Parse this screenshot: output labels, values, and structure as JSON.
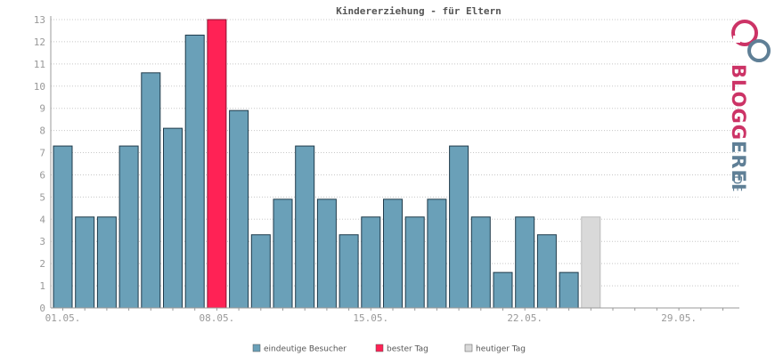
{
  "chart_data": {
    "type": "bar",
    "title": "Kindererziehung - für Eltern",
    "xlabel": "",
    "ylabel": "",
    "ylim": [
      0,
      13
    ],
    "yticks": [
      0,
      1,
      2,
      3,
      4,
      5,
      6,
      7,
      8,
      9,
      10,
      11,
      12,
      13
    ],
    "x_tick_labels": [
      "01.05.",
      "08.05.",
      "15.05.",
      "22.05.",
      "29.05."
    ],
    "days": 31,
    "values": [
      7.3,
      4.1,
      4.1,
      7.3,
      10.6,
      8.1,
      12.3,
      13,
      8.9,
      3.3,
      4.9,
      7.3,
      4.9,
      3.3,
      4.1,
      4.9,
      4.1,
      4.9,
      7.3,
      4.1,
      1.6,
      4.1,
      3.3,
      1.6,
      4.1
    ],
    "best_day_index": 7,
    "today_index": 24,
    "grid": true,
    "legend_position": "bottom",
    "legend": [
      {
        "label": "eindeutige Besucher",
        "color": "#6aa0b8"
      },
      {
        "label": "bester Tag",
        "color": "#ff2255"
      },
      {
        "label": "heutiger Tag",
        "color": "#d9d9d9"
      }
    ],
    "colors": {
      "regular": "#6aa0b8",
      "best": "#ff2255",
      "today": "#d9d9d9",
      "bar_stroke": "#1f3a4a"
    }
  },
  "brand": {
    "name": "BLOGGEREI",
    "suffix": ".DE"
  }
}
